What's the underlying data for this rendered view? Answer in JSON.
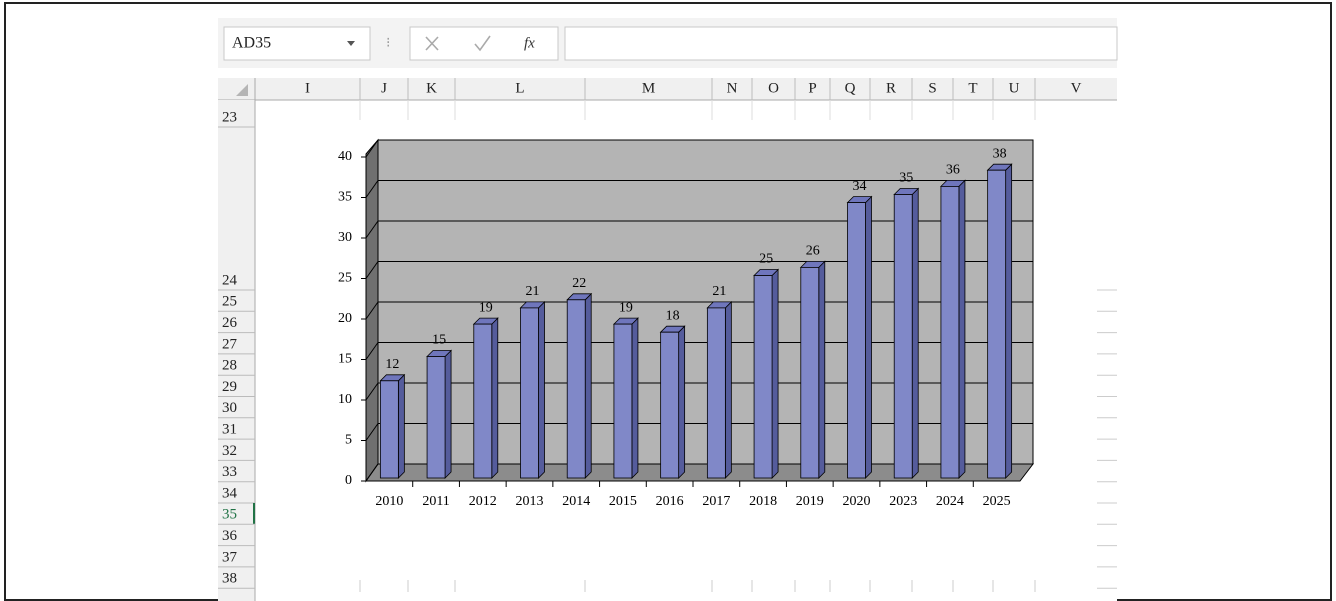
{
  "name_box": "AD35",
  "formula_bar": {
    "fx": "fx"
  },
  "columns": [
    "I",
    "J",
    "K",
    "L",
    "M",
    "N",
    "O",
    "P",
    "Q",
    "R",
    "S",
    "T",
    "U",
    "V"
  ],
  "rows": [
    "23",
    "24",
    "25",
    "26",
    "27",
    "28",
    "29",
    "30",
    "31",
    "32",
    "33",
    "34",
    "35",
    "36",
    "37",
    "38"
  ],
  "active_row": "35",
  "chart_data": {
    "type": "bar",
    "three_d": true,
    "categories": [
      "2010",
      "2011",
      "2012",
      "2013",
      "2014",
      "2015",
      "2016",
      "2017",
      "2018",
      "2019",
      "2020",
      "2023",
      "2024",
      "2025"
    ],
    "values": [
      12,
      15,
      19,
      21,
      22,
      19,
      18,
      21,
      25,
      26,
      34,
      35,
      36,
      38
    ],
    "color": "#8088c8",
    "ylim": [
      0,
      40
    ],
    "yticks": [
      0,
      5,
      10,
      15,
      20,
      25,
      30,
      35,
      40
    ],
    "grid": true
  }
}
